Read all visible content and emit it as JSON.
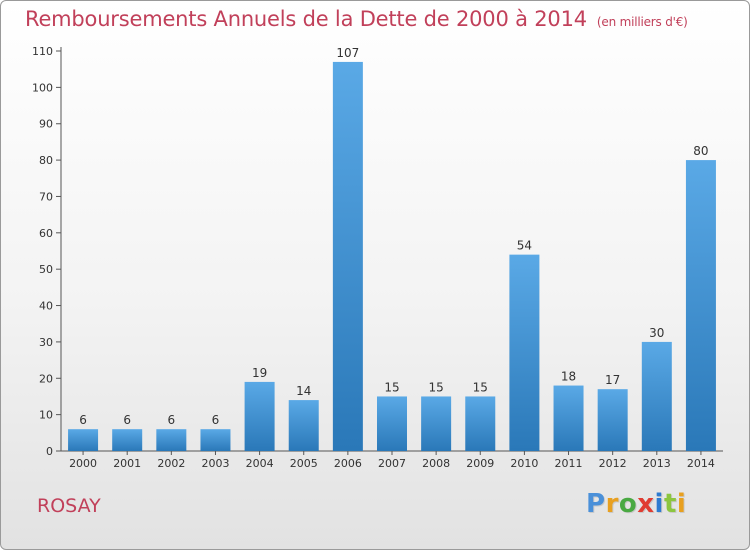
{
  "header": {
    "title": "Remboursements Annuels de la Dette de 2000 à 2014",
    "unit": "(en milliers d'€)"
  },
  "footer": {
    "commune": "ROSAY",
    "brand": "Proxiti",
    "brand_colors": [
      "#4a90d9",
      "#e8a020",
      "#49a942",
      "#e03c31",
      "#2e7bd1",
      "#8cc63f",
      "#e8a020"
    ]
  },
  "colors": {
    "bar_light": "#5aa9e6",
    "bar_dark": "#2a78b8",
    "title": "#c1405a"
  },
  "chart_data": {
    "type": "bar",
    "categories": [
      "2000",
      "2001",
      "2002",
      "2003",
      "2004",
      "2005",
      "2006",
      "2007",
      "2008",
      "2009",
      "2010",
      "2011",
      "2012",
      "2013",
      "2014"
    ],
    "values": [
      6,
      6,
      6,
      6,
      19,
      14,
      107,
      15,
      15,
      15,
      54,
      18,
      17,
      30,
      80
    ],
    "ylim": [
      0,
      110
    ],
    "yticks": [
      0,
      10,
      20,
      30,
      40,
      50,
      60,
      70,
      80,
      90,
      100,
      110
    ],
    "grid": false,
    "data_labels": true
  }
}
